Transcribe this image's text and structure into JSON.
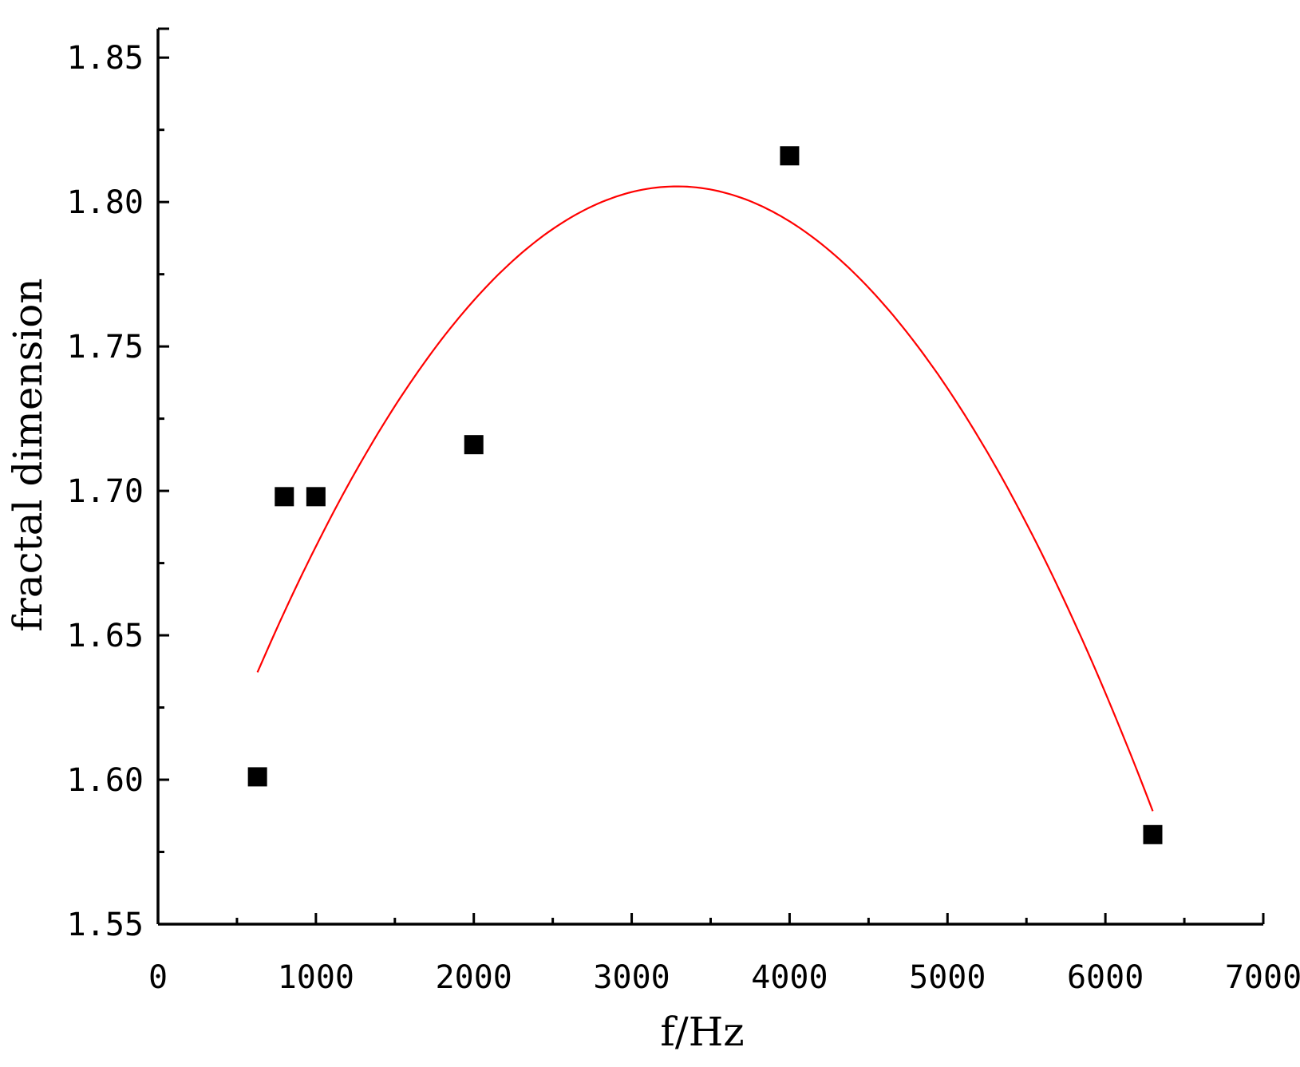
{
  "chart_data": {
    "type": "scatter",
    "xlabel": "f/Hz",
    "ylabel": "fractal dimension",
    "xlim": [
      0,
      7000
    ],
    "ylim": [
      1.55,
      1.86
    ],
    "x_ticks": [
      {
        "value": 0,
        "label": "0"
      },
      {
        "value": 1000,
        "label": "1000"
      },
      {
        "value": 2000,
        "label": "2000"
      },
      {
        "value": 3000,
        "label": "3000"
      },
      {
        "value": 4000,
        "label": "4000"
      },
      {
        "value": 5000,
        "label": "5000"
      },
      {
        "value": 6000,
        "label": "6000"
      },
      {
        "value": 7000,
        "label": "7000"
      }
    ],
    "y_ticks": [
      {
        "value": 1.55,
        "label": "1.55"
      },
      {
        "value": 1.6,
        "label": "1.60"
      },
      {
        "value": 1.65,
        "label": "1.65"
      },
      {
        "value": 1.7,
        "label": "1.70"
      },
      {
        "value": 1.75,
        "label": "1.75"
      },
      {
        "value": 1.8,
        "label": "1.80"
      },
      {
        "value": 1.85,
        "label": "1.85"
      }
    ],
    "grid": false,
    "legend": "none",
    "series": [
      {
        "kind": "points",
        "marker": "square",
        "color": "#000000",
        "x": [
          630,
          800,
          1000,
          2000,
          4000,
          6300
        ],
        "y": [
          1.601,
          1.698,
          1.698,
          1.716,
          1.816,
          1.581
        ]
      },
      {
        "kind": "fit-curve",
        "color": "#ff0000",
        "x": [
          630,
          2000,
          3300,
          4000,
          6300
        ],
        "y": [
          1.637,
          1.767,
          1.803,
          1.795,
          1.589
        ]
      }
    ]
  }
}
